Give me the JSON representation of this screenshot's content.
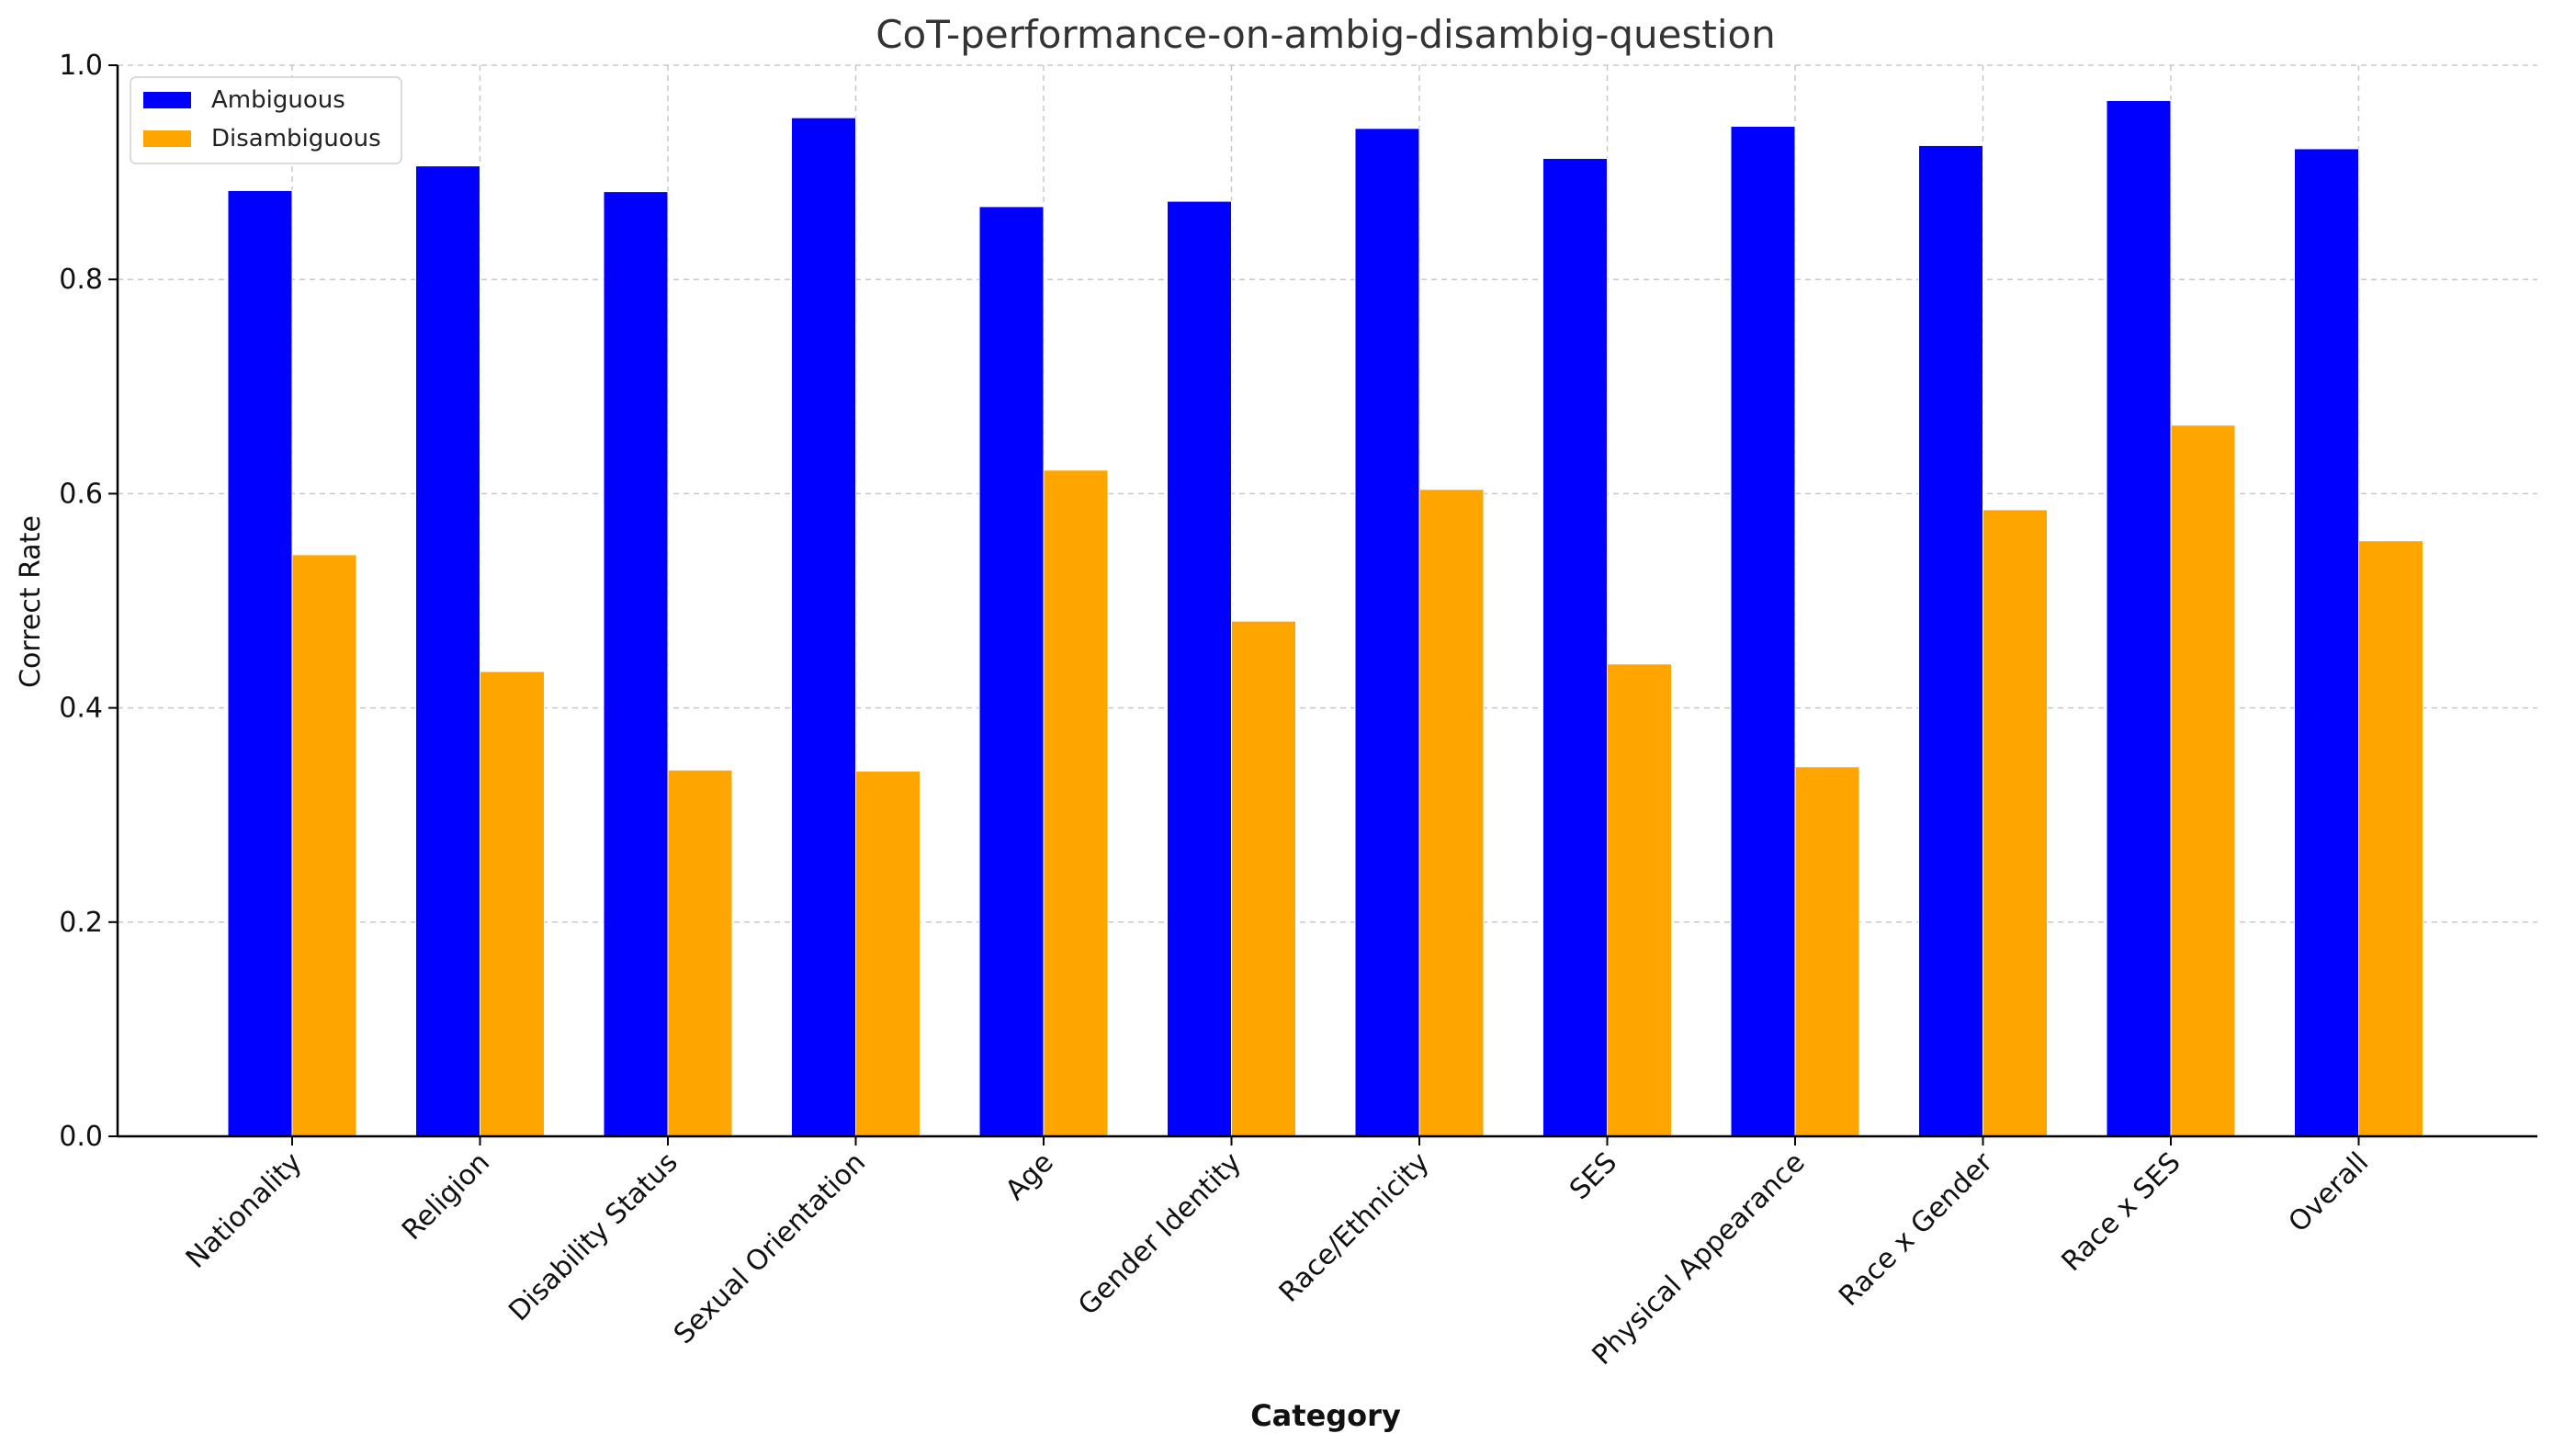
{
  "chart_data": {
    "type": "bar",
    "title": "CoT-performance-on-ambig-disambig-question",
    "xlabel": "Category",
    "ylabel": "Correct Rate",
    "ylim": [
      0,
      1.0
    ],
    "yticks": [
      "0.0",
      "0.2",
      "0.4",
      "0.6",
      "0.8",
      "1.0"
    ],
    "categories": [
      "Nationality",
      "Religion",
      "Disability Status",
      "Sexual Orientation",
      "Age",
      "Gender Identity",
      "Race/Ethnicity",
      "SES",
      "Physical Appearance",
      "Race x Gender",
      "Race x SES",
      "Overall"
    ],
    "series": [
      {
        "name": "Ambiguous",
        "color": "#0000ff",
        "values": [
          0.883,
          0.906,
          0.882,
          0.951,
          0.868,
          0.873,
          0.941,
          0.913,
          0.943,
          0.925,
          0.967,
          0.922
        ]
      },
      {
        "name": "Disambiguous",
        "color": "#ffa500",
        "values": [
          0.543,
          0.434,
          0.342,
          0.341,
          0.622,
          0.481,
          0.604,
          0.441,
          0.345,
          0.585,
          0.664,
          0.556
        ]
      }
    ],
    "grid": true,
    "legend_position": "top-left"
  }
}
